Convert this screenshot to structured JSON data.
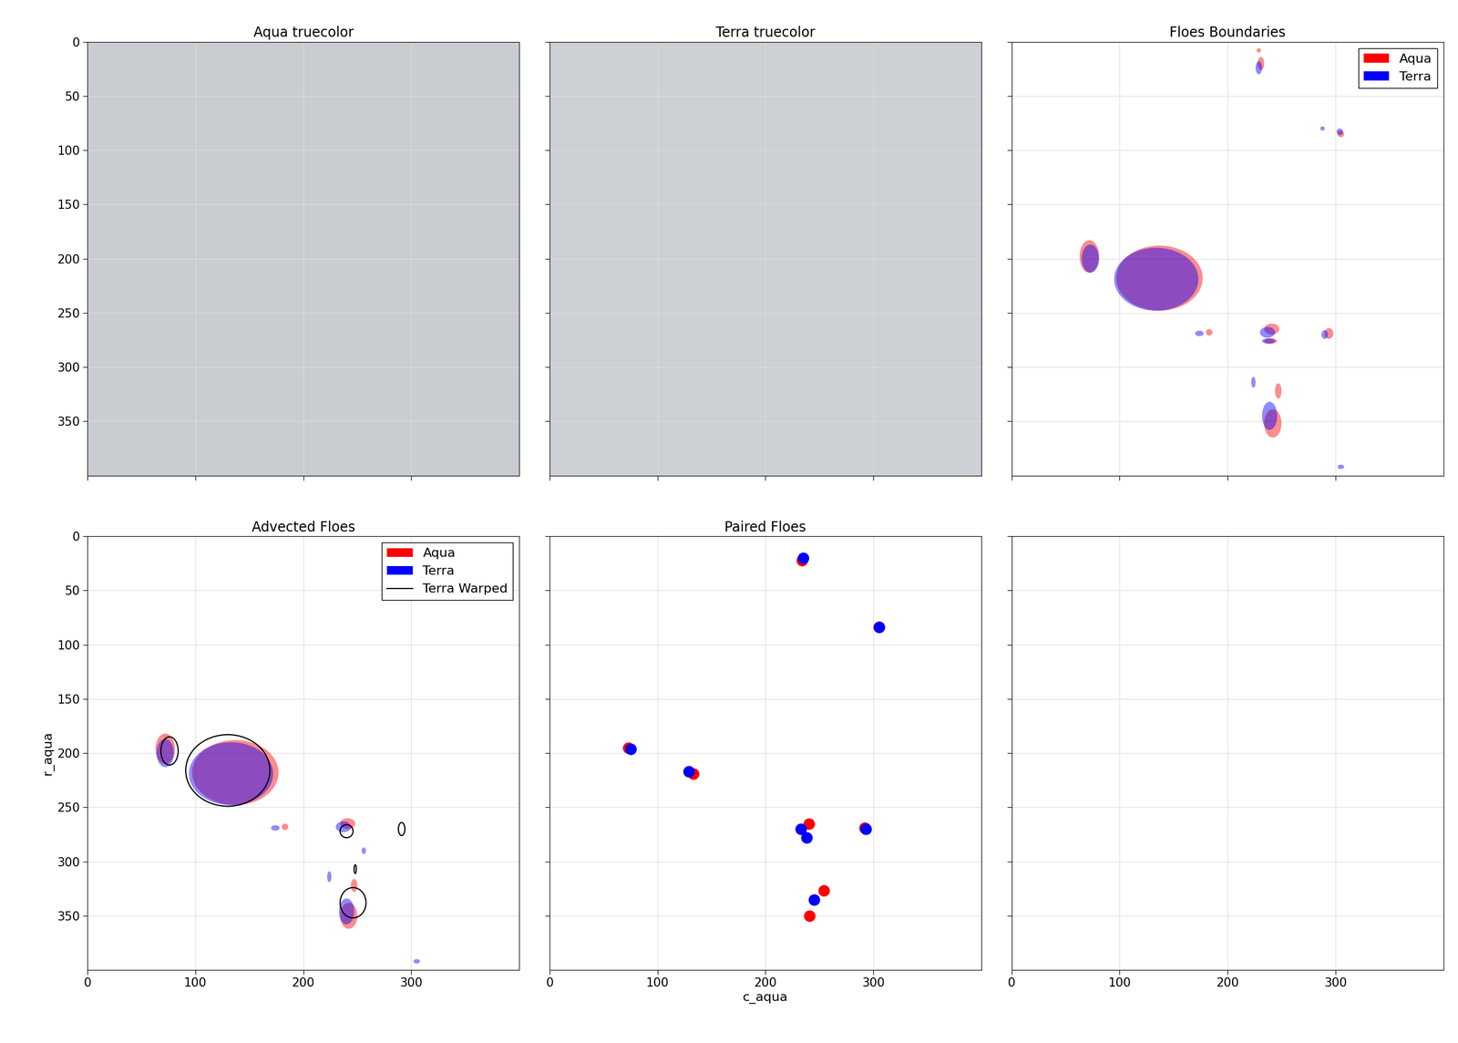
{
  "chart_data": [
    {
      "type": "image",
      "title": "Aqua truecolor",
      "color": "#c9cdd1",
      "xlim": [
        0,
        400
      ],
      "ylim": [
        400,
        0
      ],
      "xticks": [
        0,
        100,
        200,
        300
      ],
      "yticks": [
        0,
        50,
        100,
        150,
        200,
        250,
        300,
        350
      ],
      "grid": true,
      "tick_labels": "y"
    },
    {
      "type": "image",
      "title": "Terra truecolor",
      "color": "#cdd0d4",
      "xlim": [
        0,
        400
      ],
      "ylim": [
        400,
        0
      ],
      "xticks": [
        0,
        100,
        200,
        300
      ],
      "yticks": [
        0,
        50,
        100,
        150,
        200,
        250,
        300,
        350
      ],
      "grid": true,
      "tick_labels": false
    },
    {
      "type": "floes",
      "title": "Floes Boundaries",
      "legend": "upper right",
      "xlim": [
        0,
        400
      ],
      "ylim": [
        400,
        0
      ],
      "xticks": [
        0,
        100,
        200,
        300
      ],
      "yticks": [
        0,
        50,
        100,
        150,
        200,
        250,
        300,
        350
      ],
      "grid": true,
      "tick_labels": false,
      "series": [
        {
          "name": "Aqua",
          "color": "#ff0000",
          "floes": [
            {
              "c": 137,
              "r": 218,
              "w": 80,
              "h": 60
            },
            {
              "c": 72,
              "r": 198,
              "w": 18,
              "h": 30
            },
            {
              "c": 231,
              "r": 20,
              "w": 6,
              "h": 12
            },
            {
              "c": 305,
              "r": 85,
              "w": 6,
              "h": 6
            },
            {
              "c": 241,
              "r": 265,
              "w": 14,
              "h": 10
            },
            {
              "c": 240,
              "r": 276,
              "w": 12,
              "h": 5
            },
            {
              "c": 294,
              "r": 269,
              "w": 8,
              "h": 10
            },
            {
              "c": 183,
              "r": 268,
              "w": 6,
              "h": 6
            },
            {
              "c": 247,
              "r": 322,
              "w": 6,
              "h": 14
            },
            {
              "c": 242,
              "r": 352,
              "w": 16,
              "h": 26
            },
            {
              "c": 229,
              "r": 8,
              "w": 4,
              "h": 4
            }
          ]
        },
        {
          "name": "Terra",
          "color": "#0000ff",
          "floes": [
            {
              "c": 134,
              "r": 219,
              "w": 78,
              "h": 58
            },
            {
              "c": 73,
              "r": 200,
              "w": 16,
              "h": 26
            },
            {
              "c": 229,
              "r": 24,
              "w": 6,
              "h": 12
            },
            {
              "c": 304,
              "r": 83,
              "w": 6,
              "h": 6
            },
            {
              "c": 237,
              "r": 268,
              "w": 14,
              "h": 10
            },
            {
              "c": 238,
              "r": 276,
              "w": 12,
              "h": 5
            },
            {
              "c": 290,
              "r": 270,
              "w": 6,
              "h": 8
            },
            {
              "c": 174,
              "r": 269,
              "w": 8,
              "h": 5
            },
            {
              "c": 224,
              "r": 314,
              "w": 4,
              "h": 10
            },
            {
              "c": 239,
              "r": 345,
              "w": 14,
              "h": 26
            },
            {
              "c": 305,
              "r": 392,
              "w": 6,
              "h": 4
            },
            {
              "c": 288,
              "r": 80,
              "w": 4,
              "h": 4
            }
          ]
        }
      ]
    },
    {
      "type": "floes",
      "title": "Advected Floes",
      "legend": "upper right",
      "y_label": "r_aqua",
      "xlim": [
        0,
        400
      ],
      "ylim": [
        400,
        0
      ],
      "xticks": [
        0,
        100,
        200,
        300
      ],
      "yticks": [
        0,
        50,
        100,
        150,
        200,
        250,
        300,
        350
      ],
      "grid": true,
      "tick_labels": true,
      "series": [
        {
          "name": "Aqua",
          "color": "#ff0000",
          "floes": [
            {
              "c": 137,
              "r": 218,
              "w": 80,
              "h": 60
            },
            {
              "c": 72,
              "r": 196,
              "w": 18,
              "h": 28
            },
            {
              "c": 241,
              "r": 265,
              "w": 14,
              "h": 10
            },
            {
              "c": 183,
              "r": 268,
              "w": 6,
              "h": 6
            },
            {
              "c": 247,
              "r": 322,
              "w": 6,
              "h": 12
            },
            {
              "c": 242,
              "r": 350,
              "w": 16,
              "h": 24
            }
          ]
        },
        {
          "name": "Terra",
          "color": "#0000ff",
          "floes": [
            {
              "c": 133,
              "r": 219,
              "w": 78,
              "h": 58
            },
            {
              "c": 72,
              "r": 200,
              "w": 16,
              "h": 26
            },
            {
              "c": 237,
              "r": 268,
              "w": 14,
              "h": 10
            },
            {
              "c": 174,
              "r": 269,
              "w": 8,
              "h": 5
            },
            {
              "c": 224,
              "r": 314,
              "w": 4,
              "h": 10
            },
            {
              "c": 240,
              "r": 346,
              "w": 14,
              "h": 24
            },
            {
              "c": 256,
              "r": 290,
              "w": 4,
              "h": 6
            },
            {
              "c": 305,
              "r": 392,
              "w": 6,
              "h": 4
            }
          ]
        },
        {
          "name": "Terra Warped",
          "color": "#000000",
          "line_style": "solid",
          "floes": [
            {
              "c": 130,
              "r": 216,
              "w": 78,
              "h": 66
            },
            {
              "c": 76,
              "r": 198,
              "w": 16,
              "h": 26
            },
            {
              "c": 240,
              "r": 272,
              "w": 12,
              "h": 12
            },
            {
              "c": 291,
              "r": 270,
              "w": 6,
              "h": 12
            },
            {
              "c": 246,
              "r": 338,
              "w": 24,
              "h": 28
            },
            {
              "c": 248,
              "r": 307,
              "w": 2,
              "h": 8
            }
          ]
        }
      ]
    },
    {
      "type": "scatter",
      "title": "Paired Floes",
      "x_label": "c_aqua",
      "xlim": [
        0,
        400
      ],
      "ylim": [
        400,
        0
      ],
      "xticks": [
        0,
        100,
        200,
        300
      ],
      "yticks": [
        0,
        50,
        100,
        150,
        200,
        250,
        300,
        350
      ],
      "grid": true,
      "tick_labels": "x",
      "series": [
        {
          "name": "Aqua",
          "color": "#ff0000",
          "x": [
            234,
            305,
            73,
            133,
            240,
            292,
            254,
            241
          ],
          "y": [
            22,
            84,
            195,
            219,
            265,
            269,
            327,
            350
          ]
        },
        {
          "name": "Terra",
          "color": "#0000ff",
          "x": [
            235,
            305,
            75,
            129,
            233,
            238,
            293,
            245
          ],
          "y": [
            20,
            84,
            196,
            217,
            270,
            278,
            270,
            335
          ]
        }
      ]
    },
    {
      "type": "empty",
      "xlim": [
        0,
        400
      ],
      "ylim": [
        400,
        0
      ],
      "xticks": [
        0,
        100,
        200,
        300
      ],
      "yticks": [
        0,
        50,
        100,
        150,
        200,
        250,
        300,
        350
      ],
      "grid": true,
      "tick_labels": "x"
    }
  ]
}
